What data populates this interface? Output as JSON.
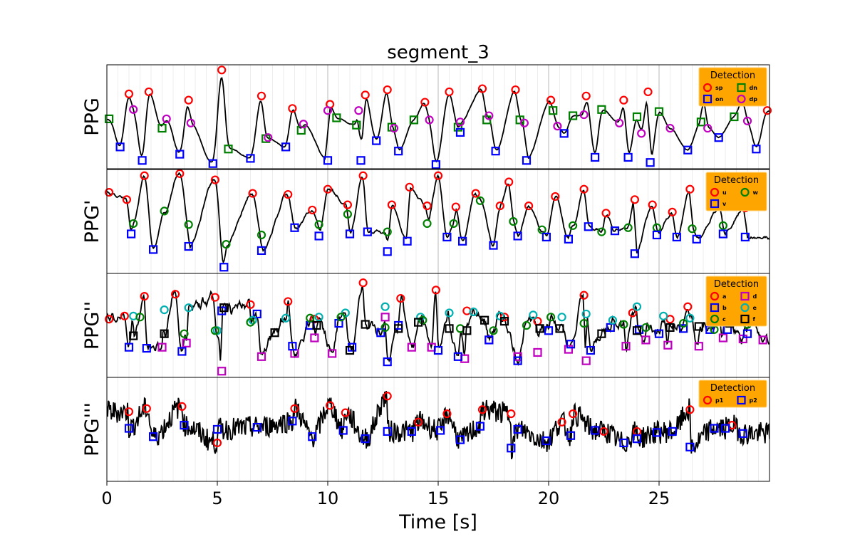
{
  "chart_data": {
    "type": "line",
    "title": "segment_3",
    "xlabel": "Time [s]",
    "xlim": [
      0,
      30
    ],
    "xticks": [
      "0",
      "5",
      "10",
      "15",
      "20",
      "25"
    ],
    "grid": true,
    "legend_title": "Detection",
    "legend_placement": "top-right",
    "panels": [
      {
        "ylabel": "PPG",
        "legend": [
          {
            "label": "sp",
            "marker": "circle",
            "color": "#ff0000"
          },
          {
            "label": "dn",
            "marker": "square",
            "color": "#008000"
          },
          {
            "label": "on",
            "marker": "square",
            "color": "#0000ff"
          },
          {
            "label": "dp",
            "marker": "circle",
            "color": "#c000c0"
          }
        ],
        "points": [
          {
            "label": "sp",
            "t": [
              1.0,
              1.9,
              3.7,
              5.2,
              7.0,
              8.4,
              10.1,
              11.7,
              12.7,
              14.4,
              15.5,
              17.0,
              18.5,
              20.1,
              21.7,
              23.4,
              24.5,
              27.0,
              28.8,
              29.9
            ],
            "y": [
              0.72,
              0.74,
              0.66,
              0.95,
              0.7,
              0.58,
              0.62,
              0.71,
              0.76,
              0.64,
              0.74,
              0.77,
              0.76,
              0.66,
              0.7,
              0.66,
              0.74,
              0.74,
              0.66,
              0.56
            ]
          },
          {
            "label": "dn",
            "t": [
              0.1,
              2.5,
              5.5,
              7.2,
              8.8,
              10.4,
              11.3,
              12.9,
              13.9,
              15.9,
              17.2,
              18.7,
              20.2,
              21.1,
              22.4,
              24.0,
              25.0,
              26.9,
              28.4
            ],
            "y": [
              0.48,
              0.39,
              0.19,
              0.29,
              0.37,
              0.49,
              0.42,
              0.4,
              0.47,
              0.4,
              0.47,
              0.47,
              0.56,
              0.51,
              0.57,
              0.5,
              0.55,
              0.45,
              0.5
            ]
          },
          {
            "label": "on",
            "t": [
              0.6,
              1.6,
              3.3,
              4.8,
              6.5,
              8.1,
              10.0,
              11.5,
              12.2,
              13.2,
              14.9,
              16.0,
              17.6,
              19.0,
              20.7,
              22.1,
              23.6,
              24.6,
              26.3,
              27.7,
              29.4
            ],
            "y": [
              0.21,
              0.08,
              0.14,
              0.05,
              0.1,
              0.21,
              0.08,
              0.08,
              0.27,
              0.17,
              0.04,
              0.35,
              0.17,
              0.08,
              0.34,
              0.11,
              0.11,
              0.06,
              0.18,
              0.3,
              0.19
            ]
          },
          {
            "label": "dp",
            "t": [
              1.2,
              2.7,
              3.8,
              7.3,
              8.9,
              10.0,
              11.4,
              13.0,
              14.6,
              16.0,
              17.3,
              18.9,
              20.4,
              21.6,
              23.2,
              24.2,
              25.5,
              27.2,
              29.0
            ],
            "y": [
              0.57,
              0.48,
              0.44,
              0.3,
              0.43,
              0.56,
              0.56,
              0.39,
              0.47,
              0.45,
              0.51,
              0.44,
              0.41,
              0.52,
              0.44,
              0.34,
              0.39,
              0.39,
              0.46
            ]
          }
        ]
      },
      {
        "ylabel": "PPG'",
        "legend": [
          {
            "label": "u",
            "marker": "circle",
            "color": "#ff0000"
          },
          {
            "label": "w",
            "marker": "circle",
            "color": "#008000"
          },
          {
            "label": "v",
            "marker": "square",
            "color": "#0000ff"
          }
        ],
        "points": [
          {
            "label": "u",
            "t": [
              0.1,
              0.9,
              1.7,
              3.3,
              4.9,
              6.6,
              8.2,
              9.3,
              10.0,
              10.9,
              11.6,
              12.9,
              13.7,
              14.5,
              15.0,
              15.8,
              16.7,
              17.8,
              18.2,
              19.1,
              20.3,
              21.6,
              22.6,
              23.9,
              24.7,
              25.6,
              26.4,
              27.8,
              28.9
            ],
            "y": [
              0.78,
              0.71,
              0.94,
              0.96,
              0.9,
              0.77,
              0.76,
              0.61,
              0.81,
              0.66,
              0.94,
              0.66,
              0.83,
              0.65,
              0.94,
              0.64,
              0.77,
              0.65,
              0.88,
              0.65,
              0.74,
              0.81,
              0.58,
              0.71,
              0.66,
              0.59,
              0.81,
              0.65,
              0.63
            ]
          },
          {
            "label": "w",
            "t": [
              1.2,
              2.6,
              3.7,
              5.4,
              7.0,
              9.6,
              10.9,
              12.7,
              14.5,
              15.7,
              16.9,
              18.4,
              19.7,
              21.1,
              22.4,
              23.6,
              24.9,
              26.5,
              27.9
            ],
            "y": [
              0.48,
              0.6,
              0.47,
              0.28,
              0.37,
              0.47,
              0.57,
              0.4,
              0.48,
              0.48,
              0.7,
              0.5,
              0.42,
              0.46,
              0.4,
              0.44,
              0.44,
              0.43,
              0.46
            ]
          },
          {
            "label": "v",
            "t": [
              1.1,
              2.1,
              3.7,
              5.3,
              7.0,
              8.5,
              9.6,
              11.0,
              11.8,
              12.7,
              13.6,
              15.4,
              16.1,
              17.5,
              18.6,
              19.9,
              20.9,
              21.8,
              23.0,
              23.9,
              24.9,
              25.8,
              26.7,
              27.9,
              28.9
            ],
            "y": [
              0.38,
              0.23,
              0.26,
              0.06,
              0.22,
              0.44,
              0.36,
              0.38,
              0.4,
              0.21,
              0.31,
              0.35,
              0.31,
              0.27,
              0.36,
              0.35,
              0.33,
              0.45,
              0.41,
              0.19,
              0.37,
              0.35,
              0.33,
              0.38,
              0.35
            ]
          }
        ]
      },
      {
        "ylabel": "PPG''",
        "legend": [
          {
            "label": "a",
            "marker": "circle",
            "color": "#ff0000"
          },
          {
            "label": "d",
            "marker": "square",
            "color": "#c000c0"
          },
          {
            "label": "b",
            "marker": "square",
            "color": "#0000ff"
          },
          {
            "label": "e",
            "marker": "circle",
            "color": "#00b0b0"
          },
          {
            "label": "c",
            "marker": "circle",
            "color": "#008000"
          },
          {
            "label": "f",
            "marker": "square",
            "color": "#000000"
          }
        ],
        "points": [
          {
            "label": "a",
            "t": [
              0.1,
              0.8,
              1.7,
              3.1,
              4.9,
              6.5,
              8.2,
              9.4,
              11.6,
              13.3,
              14.9,
              16.3,
              18.0,
              19.5,
              21.6,
              23.8,
              25.5,
              26.3,
              28.0,
              29.2
            ],
            "y": [
              0.56,
              0.59,
              0.78,
              0.8,
              0.77,
              0.7,
              0.73,
              0.56,
              0.91,
              0.76,
              0.84,
              0.64,
              0.58,
              0.54,
              0.79,
              0.62,
              0.56,
              0.68,
              0.57,
              0.55
            ]
          },
          {
            "label": "d",
            "t": [
              2.5,
              3.6,
              5.2,
              7.0,
              8.5,
              9.4,
              10.2,
              12.6,
              13.8,
              14.7,
              16.2,
              17.3,
              18.6,
              19.5,
              20.9,
              21.7,
              23.5,
              24.4,
              25.4,
              26.8,
              27.9,
              28.8,
              29.7
            ],
            "y": [
              0.29,
              0.33,
              0.06,
              0.2,
              0.23,
              0.38,
              0.23,
              0.58,
              0.29,
              0.29,
              0.18,
              0.36,
              0.2,
              0.24,
              0.27,
              0.16,
              0.3,
              0.36,
              0.31,
              0.3,
              0.38,
              0.37,
              0.36
            ]
          },
          {
            "label": "b",
            "t": [
              1.0,
              1.8,
              3.4,
              5.2,
              6.8,
              8.4,
              9.2,
              10.5,
              11.1,
              12.4,
              12.7,
              13.2,
              15.0,
              15.9,
              17.3,
              18.6,
              20.0,
              21.0,
              21.9,
              22.8,
              24.1,
              25.0,
              26.1,
              27.3,
              28.1,
              29.0
            ],
            "y": [
              0.29,
              0.28,
              0.25,
              0.64,
              0.61,
              0.3,
              0.5,
              0.52,
              0.29,
              0.43,
              0.15,
              0.5,
              0.26,
              0.2,
              0.36,
              0.16,
              0.45,
              0.32,
              0.26,
              0.48,
              0.46,
              0.42,
              0.47,
              0.46,
              0.46,
              0.42
            ]
          },
          {
            "label": "e",
            "t": [
              1.2,
              2.6,
              3.7,
              5.0,
              6.6,
              8.1,
              9.6,
              10.8,
              12.6,
              14.2,
              15.5,
              16.6,
              17.8,
              19.3,
              20.6,
              21.7,
              22.9,
              24.0,
              25.2,
              26.4,
              27.7,
              28.9
            ],
            "y": [
              0.59,
              0.65,
              0.67,
              0.45,
              0.55,
              0.57,
              0.58,
              0.62,
              0.68,
              0.58,
              0.62,
              0.63,
              0.59,
              0.6,
              0.58,
              0.61,
              0.55,
              0.68,
              0.59,
              0.57,
              0.6,
              0.55
            ]
          },
          {
            "label": "c",
            "t": [
              1.5,
              3.5,
              4.9,
              6.5,
              9.2,
              10.6,
              12.6,
              14.3,
              16.0,
              17.5,
              19.0,
              20.1,
              21.6,
              23.4,
              24.4,
              26.1,
              27.5,
              29.0
            ],
            "y": [
              0.58,
              0.42,
              0.45,
              0.53,
              0.57,
              0.58,
              0.48,
              0.55,
              0.47,
              0.45,
              0.5,
              0.58,
              0.52,
              0.51,
              0.48,
              0.52,
              0.46,
              0.51
            ]
          },
          {
            "label": "f",
            "t": [
              1.2,
              2.6,
              5.3,
              7.6,
              9.5,
              11.0,
              11.7,
              13.2,
              14.1,
              15.5,
              16.3,
              17.1,
              18.0,
              19.6,
              20.5,
              22.4,
              24.0,
              25.5,
              26.8,
              28.2
            ],
            "y": [
              0.4,
              0.42,
              0.67,
              0.43,
              0.5,
              0.26,
              0.51,
              0.47,
              0.53,
              0.47,
              0.45,
              0.55,
              0.54,
              0.47,
              0.47,
              0.42,
              0.45,
              0.48,
              0.49,
              0.52
            ]
          }
        ]
      },
      {
        "ylabel": "PPG'''",
        "legend": [
          {
            "label": "p1",
            "marker": "circle",
            "color": "#ff0000"
          },
          {
            "label": "p2",
            "marker": "square",
            "color": "#0000ff"
          }
        ],
        "points": [
          {
            "label": "p1",
            "t": [
              1.0,
              1.8,
              3.4,
              5.0,
              8.5,
              10.1,
              10.8,
              12.7,
              14.1,
              15.4,
              17.0,
              18.3,
              20.6,
              21.1,
              22.5,
              24.0,
              26.4,
              28.3
            ],
            "y": [
              0.67,
              0.7,
              0.72,
              0.37,
              0.7,
              0.73,
              0.66,
              0.82,
              0.57,
              0.65,
              0.69,
              0.65,
              0.57,
              0.65,
              0.48,
              0.48,
              0.69,
              0.54
            ]
          },
          {
            "label": "p2",
            "t": [
              1.0,
              2.1,
              3.5,
              5.0,
              6.8,
              8.4,
              9.3,
              10.7,
              11.7,
              12.7,
              13.8,
              15.1,
              16.0,
              16.9,
              18.3,
              18.6,
              19.9,
              21.0,
              22.1,
              23.4,
              24.0,
              24.9,
              25.6,
              26.4,
              27.5,
              28.0,
              28.8
            ],
            "y": [
              0.51,
              0.43,
              0.54,
              0.5,
              0.52,
              0.58,
              0.43,
              0.49,
              0.41,
              0.48,
              0.48,
              0.49,
              0.4,
              0.53,
              0.32,
              0.5,
              0.39,
              0.44,
              0.49,
              0.37,
              0.41,
              0.47,
              0.48,
              0.33,
              0.51,
              0.51,
              0.46
            ]
          }
        ]
      }
    ]
  }
}
